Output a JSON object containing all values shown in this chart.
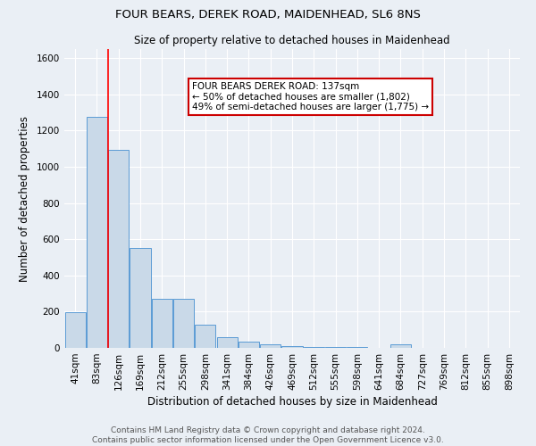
{
  "title": "FOUR BEARS, DEREK ROAD, MAIDENHEAD, SL6 8NS",
  "subtitle": "Size of property relative to detached houses in Maidenhead",
  "xlabel": "Distribution of detached houses by size in Maidenhead",
  "ylabel": "Number of detached properties",
  "footer_line1": "Contains HM Land Registry data © Crown copyright and database right 2024.",
  "footer_line2": "Contains public sector information licensed under the Open Government Licence v3.0.",
  "categories": [
    "41sqm",
    "83sqm",
    "126sqm",
    "169sqm",
    "212sqm",
    "255sqm",
    "298sqm",
    "341sqm",
    "384sqm",
    "426sqm",
    "469sqm",
    "512sqm",
    "555sqm",
    "598sqm",
    "641sqm",
    "684sqm",
    "727sqm",
    "769sqm",
    "812sqm",
    "855sqm",
    "898sqm"
  ],
  "values": [
    195,
    1275,
    1095,
    550,
    270,
    270,
    130,
    60,
    35,
    18,
    12,
    7,
    5,
    5,
    0,
    18,
    0,
    0,
    0,
    0,
    0
  ],
  "bar_color": "#c9d9e8",
  "bar_edge_color": "#5b9bd5",
  "red_line_x": 1.5,
  "annotation_title": "FOUR BEARS DEREK ROAD: 137sqm",
  "annotation_line2": "← 50% of detached houses are smaller (1,802)",
  "annotation_line3": "49% of semi-detached houses are larger (1,775) →",
  "annotation_box_facecolor": "#ffffff",
  "annotation_box_edgecolor": "#cc0000",
  "ylim": [
    0,
    1650
  ],
  "yticks": [
    0,
    200,
    400,
    600,
    800,
    1000,
    1200,
    1400,
    1600
  ],
  "bg_color": "#eaeff5",
  "plot_bg_color": "#eaeff5",
  "grid_color": "#ffffff",
  "title_fontsize": 9.5,
  "subtitle_fontsize": 8.5,
  "axis_label_fontsize": 8.5,
  "tick_fontsize": 7.5,
  "footer_fontsize": 6.5,
  "annotation_fontsize": 7.5
}
